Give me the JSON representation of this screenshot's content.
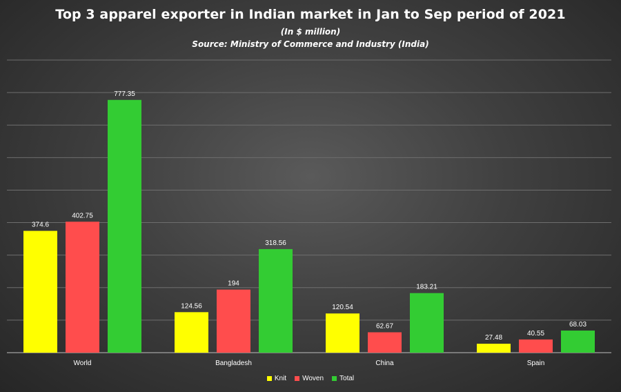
{
  "chart_data": {
    "type": "bar",
    "title": "Top 3 apparel exporter in Indian market in Jan to Sep period of 2021",
    "subtitle": "(In $ million)",
    "source": "Source: Ministry of Commerce and Industry (India)",
    "categories": [
      "World",
      "Bangladesh",
      "China",
      "Spain"
    ],
    "series": [
      {
        "name": "Knit",
        "color": "#ffff00",
        "values": [
          374.6,
          124.56,
          120.54,
          27.48
        ],
        "labels": [
          "374.6",
          "124.56",
          "120.54",
          "27.48"
        ]
      },
      {
        "name": "Woven",
        "color": "#ff4d4d",
        "values": [
          402.75,
          194,
          62.67,
          40.55
        ],
        "labels": [
          "402.75",
          "194",
          "62.67",
          "40.55"
        ]
      },
      {
        "name": "Total",
        "color": "#33cc33",
        "values": [
          777.35,
          318.56,
          183.21,
          68.03
        ],
        "labels": [
          "777.35",
          "318.56",
          "183.21",
          "68.03"
        ]
      }
    ],
    "ylim": [
      0,
      900
    ],
    "grid": true,
    "legend": "bottom"
  }
}
